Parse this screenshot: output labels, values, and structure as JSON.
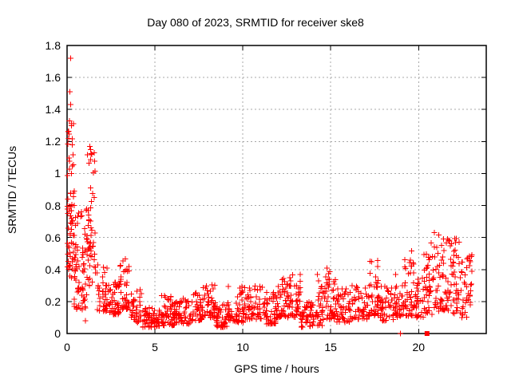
{
  "window": {
    "background": "#ffffff"
  },
  "chart_data": {
    "type": "scatter",
    "title": "Day 080 of 2023, SRMTID for receiver ske8",
    "xlabel": "GPS time / hours",
    "ylabel": "SRMTID / TECUs",
    "xlim": [
      0,
      23.85
    ],
    "ylim": [
      0,
      1.8
    ],
    "xticks": [
      {
        "value": 0,
        "label": "0"
      },
      {
        "value": 5,
        "label": "5"
      },
      {
        "value": 10,
        "label": "10"
      },
      {
        "value": 15,
        "label": "15"
      },
      {
        "value": 20,
        "label": "20"
      }
    ],
    "yticks": [
      {
        "value": 0,
        "label": "0"
      },
      {
        "value": 0.2,
        "label": "0.2"
      },
      {
        "value": 0.4,
        "label": "0.4"
      },
      {
        "value": 0.6,
        "label": "0.6"
      },
      {
        "value": 0.8,
        "label": "0.8"
      },
      {
        "value": 1,
        "label": "1"
      },
      {
        "value": 1.2,
        "label": "1.2"
      },
      {
        "value": 1.4,
        "label": "1.4"
      },
      {
        "value": 1.6,
        "label": "1.6"
      },
      {
        "value": 1.8,
        "label": "1.8"
      }
    ],
    "grid": true,
    "grid_style": "dotted",
    "grid_color": "#a8a8a8",
    "axis_color": "#000000",
    "marker": "plus",
    "marker_color": "#ff0000",
    "marker_size": 7,
    "seed": 80,
    "point_bands_format": [
      "x_start",
      "x_end",
      "y_min",
      "y_max",
      "count",
      "bottom_skew"
    ],
    "point_bands": [
      [
        0.02,
        0.38,
        0.35,
        1.33,
        36,
        1.0
      ],
      [
        0.02,
        0.5,
        0.38,
        0.9,
        30,
        1.3
      ],
      [
        0.38,
        1.12,
        0.15,
        0.78,
        70,
        1.6
      ],
      [
        1.1,
        1.6,
        0.3,
        1.15,
        52,
        1.1
      ],
      [
        1.6,
        2.3,
        0.14,
        0.45,
        40,
        1.5
      ],
      [
        2.3,
        3.0,
        0.12,
        0.33,
        48,
        1.6
      ],
      [
        3.0,
        3.55,
        0.15,
        0.47,
        40,
        1.4
      ],
      [
        3.55,
        4.3,
        0.07,
        0.28,
        38,
        1.5
      ],
      [
        4.3,
        5.3,
        0.04,
        0.17,
        65,
        1.3
      ],
      [
        5.3,
        6.1,
        0.05,
        0.24,
        55,
        1.6
      ],
      [
        6.1,
        7.1,
        0.06,
        0.21,
        60,
        1.5
      ],
      [
        7.1,
        7.7,
        0.08,
        0.26,
        40,
        1.5
      ],
      [
        7.7,
        8.45,
        0.1,
        0.31,
        48,
        1.5
      ],
      [
        8.45,
        9.1,
        0.04,
        0.18,
        45,
        1.4
      ],
      [
        9.1,
        10.2,
        0.07,
        0.3,
        60,
        1.6
      ],
      [
        10.2,
        11.3,
        0.09,
        0.32,
        58,
        1.6
      ],
      [
        11.3,
        12.0,
        0.06,
        0.26,
        48,
        1.5
      ],
      [
        12.0,
        12.7,
        0.1,
        0.35,
        50,
        1.6
      ],
      [
        12.7,
        13.3,
        0.1,
        0.37,
        42,
        1.5
      ],
      [
        13.3,
        14.0,
        0.04,
        0.2,
        42,
        1.4
      ],
      [
        14.0,
        14.6,
        0.05,
        0.3,
        34,
        1.7
      ],
      [
        14.6,
        15.3,
        0.09,
        0.41,
        45,
        1.7
      ],
      [
        15.3,
        16.2,
        0.07,
        0.28,
        50,
        1.5
      ],
      [
        16.2,
        17.2,
        0.09,
        0.3,
        55,
        1.5
      ],
      [
        17.2,
        17.8,
        0.11,
        0.47,
        40,
        1.7
      ],
      [
        17.8,
        18.6,
        0.08,
        0.3,
        42,
        1.6
      ],
      [
        18.6,
        19.2,
        0.1,
        0.3,
        35,
        1.5
      ],
      [
        19.2,
        19.8,
        0.11,
        0.57,
        42,
        1.8
      ],
      [
        19.8,
        20.3,
        0.1,
        0.35,
        30,
        1.5
      ],
      [
        20.3,
        21.0,
        0.12,
        0.58,
        48,
        1.6
      ],
      [
        21.0,
        21.7,
        0.14,
        0.6,
        48,
        1.5
      ],
      [
        21.7,
        22.4,
        0.12,
        0.6,
        46,
        1.5
      ],
      [
        22.4,
        23.05,
        0.1,
        0.52,
        40,
        1.5
      ]
    ],
    "outlier_points": [
      [
        0.2,
        1.72
      ],
      [
        0.17,
        1.51
      ],
      [
        0.2,
        1.43
      ],
      [
        0.13,
        1.33
      ],
      [
        0.24,
        1.3
      ],
      [
        0.1,
        1.22
      ],
      [
        0.3,
        1.18
      ],
      [
        1.3,
        1.17
      ],
      [
        1.35,
        1.15
      ],
      [
        1.4,
        1.12
      ],
      [
        0.05,
        0.84
      ],
      [
        0.4,
        0.8
      ],
      [
        1.05,
        0.08
      ],
      [
        6.6,
        0.22
      ],
      [
        7.3,
        0.25
      ],
      [
        14.25,
        0.37
      ],
      [
        14.3,
        0.33
      ],
      [
        18.7,
        0.37
      ],
      [
        20.9,
        0.63
      ],
      [
        21.15,
        0.615
      ],
      [
        22.3,
        0.57
      ]
    ],
    "axis_marks": [
      {
        "x": 18.97,
        "y": 0,
        "shape": "plus"
      },
      {
        "x": 20.48,
        "y": 0,
        "shape": "square"
      }
    ]
  }
}
